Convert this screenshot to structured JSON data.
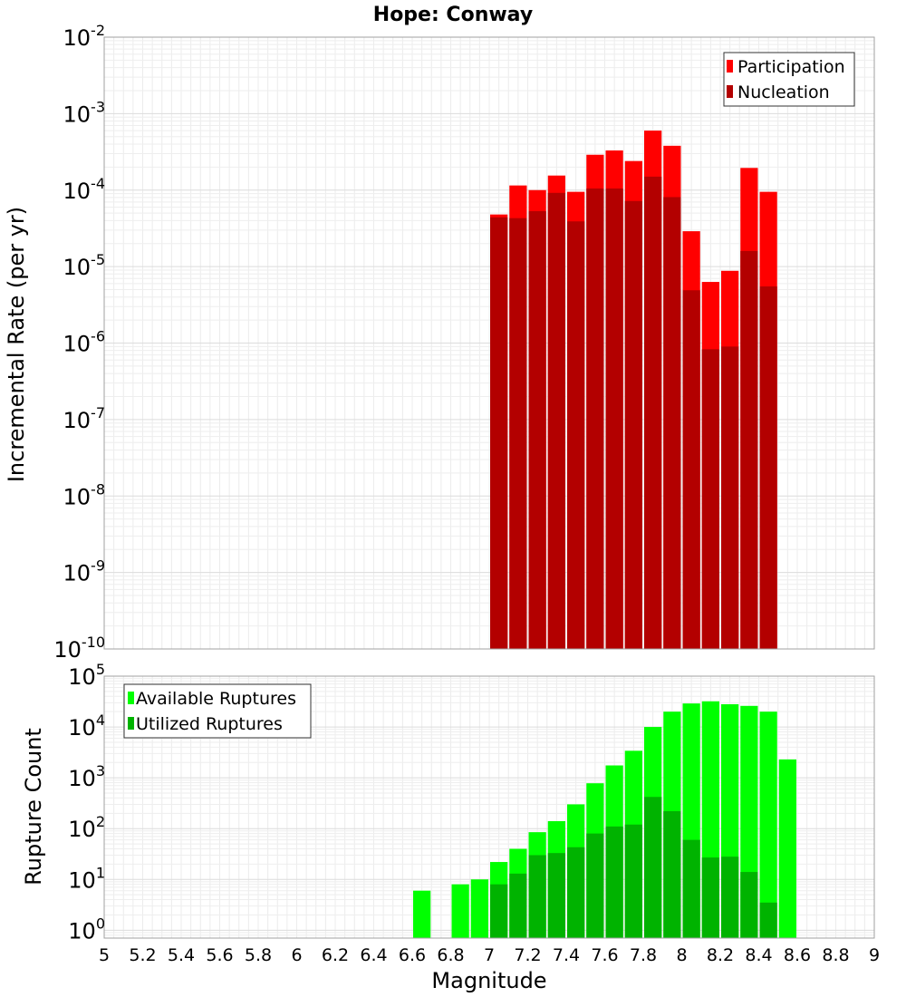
{
  "chart_data": [
    {
      "type": "bar",
      "title": "Hope: Conway",
      "xlabel": "",
      "ylabel": "Incremental Rate (per yr)",
      "yscale": "log",
      "ylim": [
        1e-10,
        0.01
      ],
      "xlim": [
        5,
        9
      ],
      "grid": true,
      "legend_position": "top-right",
      "bar_width": 0.1,
      "y_tick_labels": [
        {
          "base": "10",
          "exp": "-10",
          "value": 1e-10
        },
        {
          "base": "10",
          "exp": "-9",
          "value": 1e-09
        },
        {
          "base": "10",
          "exp": "-8",
          "value": 1e-08
        },
        {
          "base": "10",
          "exp": "-7",
          "value": 1e-07
        },
        {
          "base": "10",
          "exp": "-6",
          "value": 1e-06
        },
        {
          "base": "10",
          "exp": "-5",
          "value": 1e-05
        },
        {
          "base": "10",
          "exp": "-4",
          "value": 0.0001
        },
        {
          "base": "10",
          "exp": "-3",
          "value": 0.001
        },
        {
          "base": "10",
          "exp": "-2",
          "value": 0.01
        }
      ],
      "x": [
        7.05,
        7.15,
        7.25,
        7.35,
        7.45,
        7.55,
        7.65,
        7.75,
        7.85,
        7.95,
        8.05,
        8.15,
        8.25,
        8.35,
        8.45
      ],
      "series": [
        {
          "name": "Participation",
          "color": "#ff0000",
          "values": [
            4.8e-05,
            0.000115,
            0.0001,
            0.000155,
            9.5e-05,
            0.00029,
            0.00033,
            0.00024,
            0.0006,
            0.00038,
            2.9e-05,
            6.3e-06,
            8.8e-06,
            0.000195,
            9.5e-05
          ]
        },
        {
          "name": "Nucleation",
          "color": "#b30000",
          "values": [
            4.4e-05,
            4.3e-05,
            5.3e-05,
            9.2e-05,
            3.9e-05,
            0.000105,
            0.000105,
            7.2e-05,
            0.00015,
            8.1e-05,
            4.9e-06,
            8.3e-07,
            9e-07,
            1.6e-05,
            5.5e-06
          ]
        }
      ]
    },
    {
      "type": "bar",
      "title": "",
      "xlabel": "Magnitude",
      "ylabel": "Rupture Count",
      "yscale": "log",
      "ylim": [
        0.7,
        100000.0
      ],
      "xlim": [
        5,
        9
      ],
      "grid": true,
      "legend_position": "top-left",
      "bar_width": 0.1,
      "x_tick_labels": [
        "5",
        "5.2",
        "5.4",
        "5.6",
        "5.8",
        "6",
        "6.2",
        "6.4",
        "6.6",
        "6.8",
        "7",
        "7.2",
        "7.4",
        "7.6",
        "7.8",
        "8",
        "8.2",
        "8.4",
        "8.6",
        "8.8",
        "9"
      ],
      "y_tick_labels": [
        {
          "base": "10",
          "exp": "0",
          "value": 1
        },
        {
          "base": "10",
          "exp": "1",
          "value": 10
        },
        {
          "base": "10",
          "exp": "2",
          "value": 100
        },
        {
          "base": "10",
          "exp": "3",
          "value": 1000
        },
        {
          "base": "10",
          "exp": "4",
          "value": 10000
        },
        {
          "base": "10",
          "exp": "5",
          "value": 100000
        }
      ],
      "x": [
        6.65,
        6.85,
        6.95,
        7.05,
        7.15,
        7.25,
        7.35,
        7.45,
        7.55,
        7.65,
        7.75,
        7.85,
        7.95,
        8.05,
        8.15,
        8.25,
        8.35,
        8.45,
        8.55
      ],
      "series": [
        {
          "name": "Available Ruptures",
          "color": "#00ff00",
          "values": [
            6,
            8,
            10,
            22,
            40,
            85,
            140,
            300,
            780,
            1750,
            3400,
            10000,
            20000,
            29000,
            32000,
            28000,
            26000,
            20000,
            2300
          ]
        },
        {
          "name": "Utilized Ruptures",
          "color": "#00b300",
          "values": [
            0,
            0,
            0,
            8,
            13,
            30,
            33,
            43,
            80,
            110,
            120,
            420,
            220,
            60,
            27,
            28,
            14,
            3.5,
            0
          ]
        }
      ]
    }
  ]
}
